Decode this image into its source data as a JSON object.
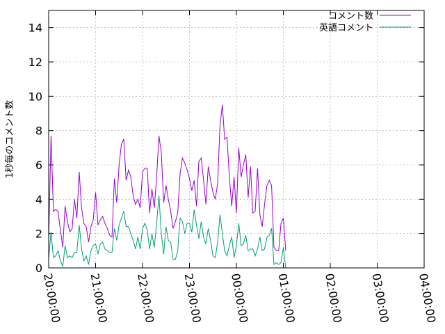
{
  "chart_data": {
    "type": "line",
    "title": "",
    "xlabel": "",
    "ylabel": "1秒毎のコメント数",
    "xlim_minutes": [
      0,
      480
    ],
    "ylim": [
      0,
      15
    ],
    "x_ticks": [
      "20:00:00",
      "21:00:00",
      "22:00:00",
      "23:00:00",
      "00:00:00",
      "01:00:00",
      "02:00:00",
      "03:00:00",
      "04:00:00"
    ],
    "y_ticks": [
      "0",
      "2",
      "4",
      "6",
      "8",
      "10",
      "12",
      "14"
    ],
    "legend_position": "top-right",
    "colors": {
      "total": "#9400d3",
      "english": "#009e73"
    },
    "x_start": "20:00:00",
    "x_step_minutes": 3,
    "series": [
      {
        "name": "コメント数",
        "values": [
          1.5,
          7.7,
          3.3,
          3.4,
          3.3,
          2.2,
          1.2,
          3.6,
          2.7,
          2.1,
          2.3,
          4.0,
          2.9,
          5.6,
          3.5,
          2.6,
          2.4,
          1.5,
          2.4,
          2.8,
          4.4,
          2.5,
          2.8,
          3.0,
          2.6,
          2.3,
          1.9,
          1.8,
          5.2,
          3.8,
          6.0,
          7.2,
          7.5,
          5.1,
          5.7,
          5.3,
          4.2,
          3.7,
          4.0,
          3.5,
          5.6,
          5.8,
          5.8,
          3.2,
          4.6,
          3.5,
          5.3,
          7.7,
          6.7,
          3.8,
          4.8,
          4.0,
          3.3,
          2.3,
          2.7,
          3.2,
          5.5,
          6.4,
          6.1,
          5.7,
          5.2,
          4.5,
          5.1,
          3.6,
          6.2,
          6.4,
          5.1,
          3.7,
          5.9,
          5.1,
          4.4,
          4.0,
          4.9,
          8.3,
          9.5,
          7.5,
          7.6,
          5.3,
          3.6,
          5.3,
          3.2,
          7.0,
          5.3,
          6.0,
          6.6,
          4.1,
          5.9,
          3.2,
          3.3,
          5.8,
          3.1,
          2.4,
          3.7,
          4.8,
          5.1,
          4.8,
          1.2,
          1.0,
          1.0,
          2.6,
          2.9,
          1.0
        ]
      },
      {
        "name": "英語コメント",
        "values": [
          0.5,
          2.1,
          0.6,
          0.7,
          1.0,
          0.4,
          0.1,
          1.3,
          0.6,
          0.7,
          0.6,
          0.9,
          0.9,
          2.5,
          1.1,
          0.4,
          0.7,
          0.2,
          1.0,
          1.3,
          1.4,
          0.8,
          1.4,
          1.5,
          1.1,
          1.0,
          0.9,
          0.9,
          2.3,
          1.6,
          2.5,
          2.9,
          3.3,
          2.4,
          2.4,
          2.0,
          1.6,
          1.1,
          1.8,
          1.1,
          2.3,
          2.6,
          2.2,
          1.1,
          2.0,
          1.2,
          2.6,
          4.2,
          2.0,
          0.8,
          2.4,
          1.6,
          1.5,
          0.5,
          0.5,
          1.0,
          2.9,
          2.7,
          2.0,
          2.6,
          2.6,
          2.1,
          3.4,
          2.5,
          1.7,
          2.7,
          1.8,
          1.4,
          2.3,
          1.6,
          0.7,
          0.6,
          1.5,
          3.1,
          2.0,
          1.0,
          0.7,
          1.3,
          1.8,
          0.6,
          1.3,
          2.6,
          1.3,
          1.4,
          1.9,
          1.0,
          1.1,
          1.1,
          0.7,
          1.1,
          1.8,
          1.0,
          1.1,
          1.8,
          1.9,
          2.3,
          0.2,
          0.3,
          0.2,
          0.3,
          1.2,
          0.0
        ]
      }
    ]
  }
}
